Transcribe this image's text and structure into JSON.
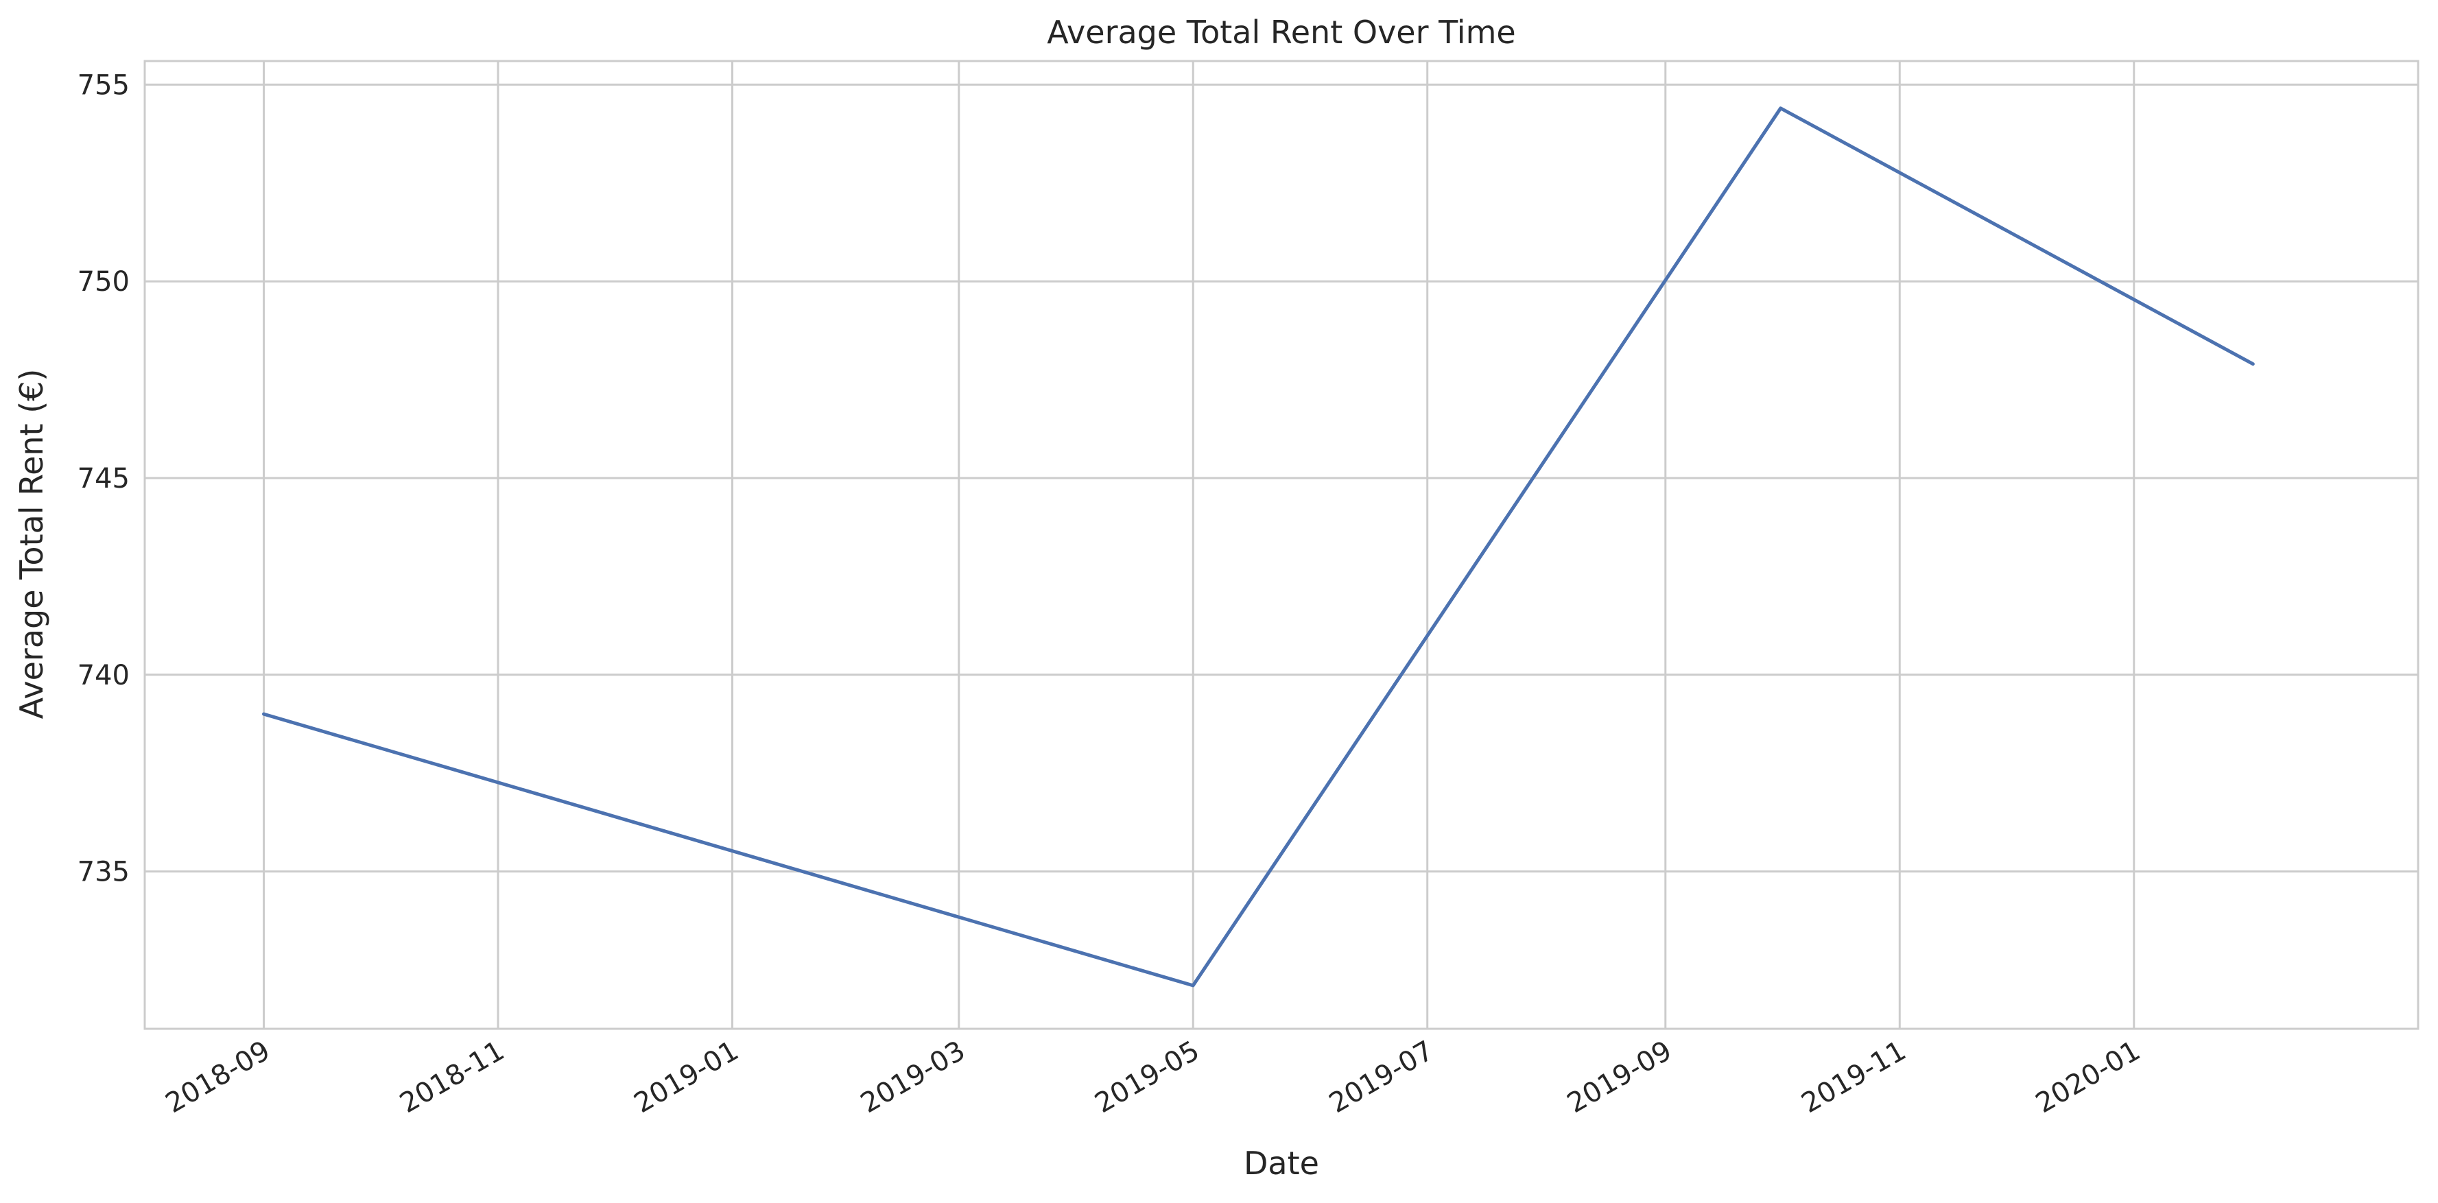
{
  "chart_data": {
    "type": "line",
    "title": "Average Total Rent Over Time",
    "xlabel": "Date",
    "ylabel": "Average Total Rent (€)",
    "x_tick_labels": [
      "2018-09",
      "2018-11",
      "2019-01",
      "2019-03",
      "2019-05",
      "2019-07",
      "2019-09",
      "2019-11",
      "2020-01"
    ],
    "y_ticks": [
      735,
      740,
      745,
      750,
      755
    ],
    "ylim": [
      731,
      755.6
    ],
    "xlim": [
      "2018-08-01",
      "2020-03-15"
    ],
    "grid": true,
    "line_color": "#4c72b0",
    "series": [
      {
        "x": [
          "2018-09-01",
          "2019-05-01",
          "2019-10-01",
          "2020-02-01"
        ],
        "y": [
          739.0,
          732.1,
          754.4,
          747.9
        ]
      }
    ]
  }
}
